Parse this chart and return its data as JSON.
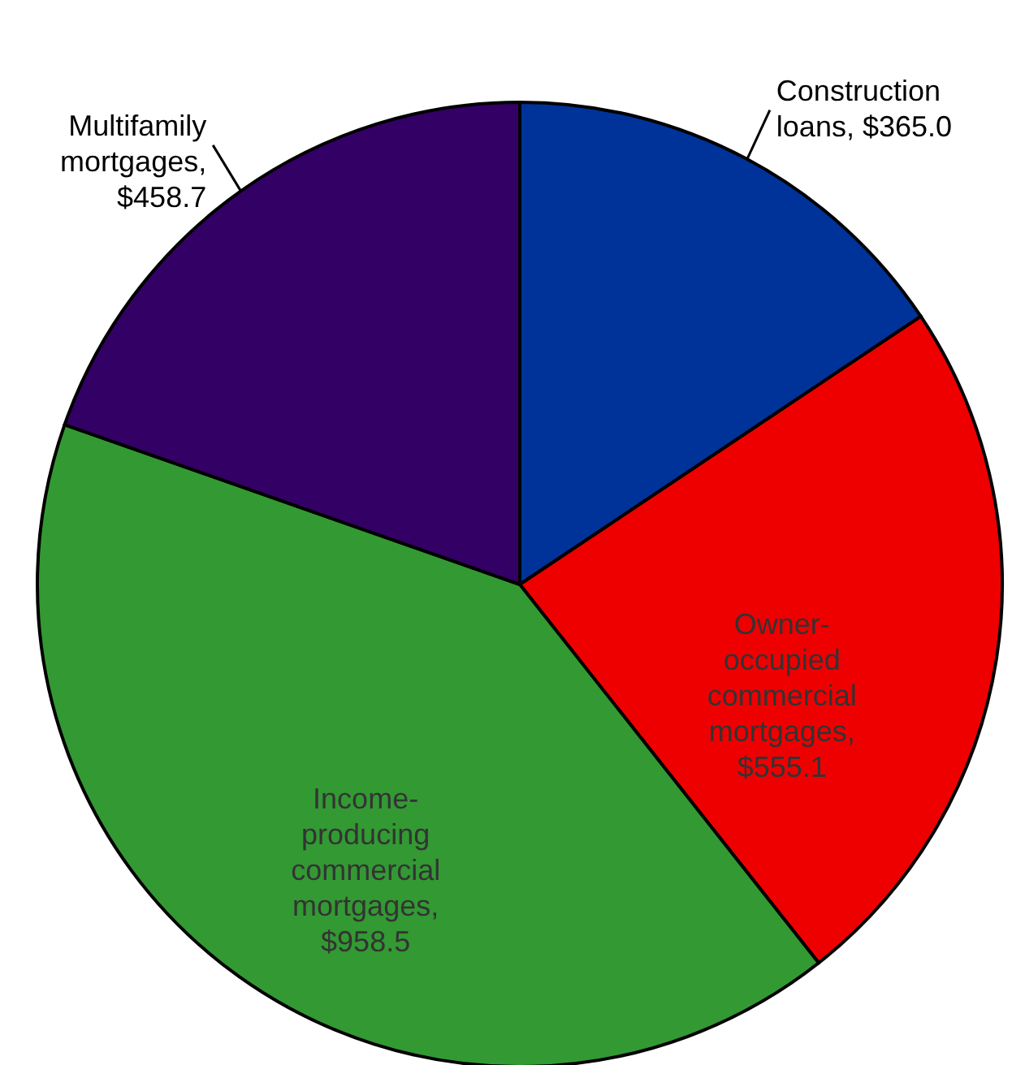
{
  "chart_data": {
    "type": "pie",
    "categories": [
      "Construction loans",
      "Owner-occupied commercial mortgages",
      "Income-producing commercial mortgages",
      "Multifamily mortgages"
    ],
    "values": [
      365.0,
      555.1,
      958.5,
      458.7
    ],
    "colors": [
      "#003399",
      "#ee0000",
      "#339933",
      "#330066"
    ],
    "value_labels": [
      ", $365.0",
      ", $555.1",
      ", $958.5",
      ", $458.7"
    ]
  }
}
